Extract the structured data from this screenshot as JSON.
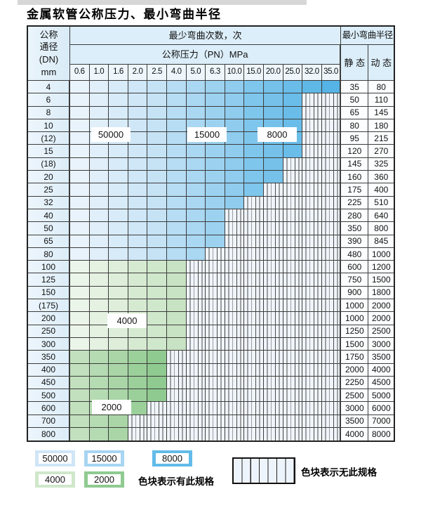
{
  "title": "金属软管公称压力、最小弯曲半径",
  "table": {
    "header": {
      "dn": [
        "公称",
        "通径",
        "(DN)",
        "mm"
      ],
      "bend_cycles": "最少弯曲次数，次",
      "pressure": "公称压力（PN）MPa",
      "pressures": [
        "0.6",
        "1.0",
        "1.6",
        "2.0",
        "2.5",
        "4.0",
        "5.0",
        "6.3",
        "10.0",
        "15.0",
        "20.0",
        "25.0",
        "32.0",
        "35.0"
      ],
      "radius": "最小弯曲半径",
      "static": "静 态",
      "dynamic": "动 态"
    },
    "rows": [
      {
        "dn": "4",
        "static": "35",
        "dynamic": "80",
        "bands": [
          [
            "k50",
            5
          ],
          [
            "k15",
            4
          ],
          [
            "k8",
            5
          ]
        ]
      },
      {
        "dn": "6",
        "static": "50",
        "dynamic": "110",
        "bands": [
          [
            "k50",
            5
          ],
          [
            "k15",
            4
          ],
          [
            "k8",
            3
          ],
          [
            "x",
            2
          ]
        ]
      },
      {
        "dn": "8",
        "static": "65",
        "dynamic": "145",
        "bands": [
          [
            "k50",
            5
          ],
          [
            "k15",
            4
          ],
          [
            "k8",
            3
          ],
          [
            "x",
            2
          ]
        ]
      },
      {
        "dn": "10",
        "static": "80",
        "dynamic": "180",
        "bands": [
          [
            "k50",
            5
          ],
          [
            "k15",
            4
          ],
          [
            "k8",
            3
          ],
          [
            "x",
            2
          ]
        ]
      },
      {
        "dn": "(12)",
        "static": "95",
        "dynamic": "215",
        "bands": [
          [
            "k50",
            5
          ],
          [
            "k15",
            4
          ],
          [
            "k8",
            3
          ],
          [
            "x",
            2
          ]
        ]
      },
      {
        "dn": "15",
        "static": "120",
        "dynamic": "270",
        "bands": [
          [
            "k50",
            5
          ],
          [
            "k15",
            4
          ],
          [
            "k8",
            3
          ],
          [
            "x",
            2
          ]
        ]
      },
      {
        "dn": "(18)",
        "static": "145",
        "dynamic": "325",
        "bands": [
          [
            "k50",
            5
          ],
          [
            "k15",
            4
          ],
          [
            "k8",
            2
          ],
          [
            "x",
            3
          ]
        ]
      },
      {
        "dn": "20",
        "static": "160",
        "dynamic": "360",
        "bands": [
          [
            "k50",
            5
          ],
          [
            "k15",
            4
          ],
          [
            "k8",
            2
          ],
          [
            "x",
            3
          ]
        ]
      },
      {
        "dn": "25",
        "static": "175",
        "dynamic": "400",
        "bands": [
          [
            "k50",
            5
          ],
          [
            "k15",
            4
          ],
          [
            "k8",
            1
          ],
          [
            "x",
            4
          ]
        ]
      },
      {
        "dn": "32",
        "static": "225",
        "dynamic": "510",
        "bands": [
          [
            "k50",
            5
          ],
          [
            "k15",
            4
          ],
          [
            "x",
            5
          ]
        ]
      },
      {
        "dn": "40",
        "static": "280",
        "dynamic": "640",
        "bands": [
          [
            "k50",
            5
          ],
          [
            "k15",
            3
          ],
          [
            "x",
            6
          ]
        ]
      },
      {
        "dn": "50",
        "static": "350",
        "dynamic": "800",
        "bands": [
          [
            "k50",
            5
          ],
          [
            "k15",
            3
          ],
          [
            "x",
            6
          ]
        ]
      },
      {
        "dn": "65",
        "static": "390",
        "dynamic": "845",
        "bands": [
          [
            "k50",
            5
          ],
          [
            "k15",
            3
          ],
          [
            "x",
            6
          ]
        ]
      },
      {
        "dn": "80",
        "static": "480",
        "dynamic": "1000",
        "bands": [
          [
            "k50",
            5
          ],
          [
            "k15",
            2
          ],
          [
            "x",
            7
          ]
        ]
      },
      {
        "dn": "100",
        "static": "600",
        "dynamic": "1200",
        "bands": [
          [
            "g4",
            6
          ],
          [
            "x",
            8
          ]
        ]
      },
      {
        "dn": "125",
        "static": "750",
        "dynamic": "1500",
        "bands": [
          [
            "g4",
            6
          ],
          [
            "x",
            8
          ]
        ]
      },
      {
        "dn": "150",
        "static": "900",
        "dynamic": "1800",
        "bands": [
          [
            "g4",
            6
          ],
          [
            "x",
            8
          ]
        ]
      },
      {
        "dn": "(175)",
        "static": "1000",
        "dynamic": "2000",
        "bands": [
          [
            "g4",
            6
          ],
          [
            "x",
            8
          ]
        ]
      },
      {
        "dn": "200",
        "static": "1000",
        "dynamic": "2000",
        "bands": [
          [
            "g4",
            6
          ],
          [
            "x",
            8
          ]
        ]
      },
      {
        "dn": "250",
        "static": "1250",
        "dynamic": "2500",
        "bands": [
          [
            "g4",
            6
          ],
          [
            "x",
            8
          ]
        ]
      },
      {
        "dn": "300",
        "static": "1500",
        "dynamic": "3000",
        "bands": [
          [
            "g4",
            6
          ],
          [
            "x",
            8
          ]
        ]
      },
      {
        "dn": "350",
        "static": "1750",
        "dynamic": "3500",
        "bands": [
          [
            "g2",
            5
          ],
          [
            "x",
            9
          ]
        ]
      },
      {
        "dn": "400",
        "static": "2000",
        "dynamic": "4000",
        "bands": [
          [
            "g2",
            5
          ],
          [
            "x",
            9
          ]
        ]
      },
      {
        "dn": "450",
        "static": "2250",
        "dynamic": "4500",
        "bands": [
          [
            "g2",
            5
          ],
          [
            "x",
            9
          ]
        ]
      },
      {
        "dn": "500",
        "static": "2500",
        "dynamic": "5000",
        "bands": [
          [
            "g2",
            5
          ],
          [
            "x",
            9
          ]
        ]
      },
      {
        "dn": "600",
        "static": "3000",
        "dynamic": "6000",
        "bands": [
          [
            "g2",
            4
          ],
          [
            "x",
            10
          ]
        ]
      },
      {
        "dn": "700",
        "static": "3500",
        "dynamic": "7000",
        "bands": [
          [
            "g2",
            3
          ],
          [
            "x",
            11
          ]
        ]
      },
      {
        "dn": "800",
        "static": "4000",
        "dynamic": "8000",
        "bands": [
          [
            "g2",
            3
          ],
          [
            "x",
            11
          ]
        ]
      }
    ]
  },
  "overlays": [
    {
      "label": "50000"
    },
    {
      "label": "15000"
    },
    {
      "label": "8000"
    },
    {
      "label": "4000"
    },
    {
      "label": "2000"
    }
  ],
  "band_colors": {
    "k50": [
      "#e9f3fb",
      "#c6e3f6"
    ],
    "k15": [
      "#b7ddf4",
      "#8fccee"
    ],
    "k8": [
      "#7fc6ec",
      "#55b3e5"
    ],
    "g4": [
      "#ecf5e9",
      "#c8e3c3"
    ],
    "g2": [
      "#c2e0bd",
      "#8fca90"
    ],
    "hatch_bg": "#f0f5fb",
    "hatch_line": "#4a4a4a"
  },
  "legend": {
    "items": [
      {
        "label": "50000",
        "color": "#cfe6f7"
      },
      {
        "label": "15000",
        "color": "#a7d5f2"
      },
      {
        "label": "8000",
        "color": "#62bbe8"
      },
      {
        "label": "4000",
        "color": "#cfe7ca"
      },
      {
        "label": "2000",
        "color": "#8fca90"
      }
    ],
    "present_note": "色块表示有此规格",
    "absent_note": "色块表示无此规格"
  }
}
